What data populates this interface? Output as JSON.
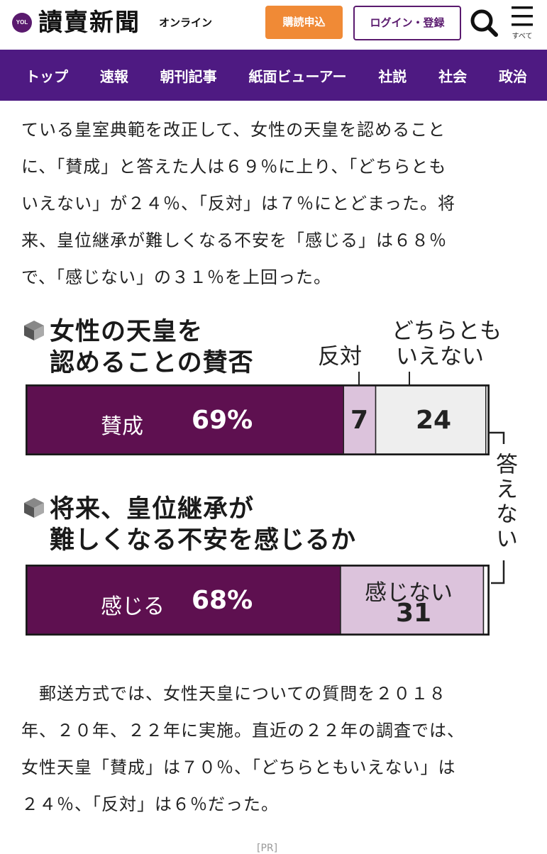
{
  "header": {
    "logo_badge": "YOL",
    "logo_text": "讀賣新聞",
    "logo_sub": "オンライン",
    "subscribe_label": "購読申込",
    "login_label": "ログイン・登録",
    "menu_label": "すべて"
  },
  "nav": {
    "items": [
      "トップ",
      "速報",
      "朝刊記事",
      "紙面ビューアー",
      "社説",
      "社会",
      "政治"
    ]
  },
  "article": {
    "para1": [
      "ている皇室典範を改正して、女性の天皇を認めること",
      "に、「賛成」と答えた人は６９％に上り、「どちらとも",
      "いえない」が２４％、「反対」は７％にとどまった。将",
      "来、皇位継承が難しくなる不安を「感じる」は６８％",
      "で、「感じない」の３１％を上回った。"
    ],
    "para2": [
      "　郵送方式では、女性天皇についての質問を２０１８",
      "年、２０年、２２年に実施。直近の２２年の調査では、",
      "女性天皇「賛成」は７０％、「どちらともいえない」は",
      "２４％、「反対」は６％だった。"
    ],
    "footer_fragment": "[PR]"
  },
  "colors": {
    "nav_bg": "#4e1a82",
    "subscribe_bg": "#f08a36",
    "bar_primary": "#5e1050",
    "bar_secondary": "#dcc3dc",
    "bar_neutral": "#eeeeee"
  },
  "chart_data": [
    {
      "type": "bar",
      "orientation": "horizontal-stacked",
      "title_lines": [
        "女性の天皇を",
        "認めることの賛否"
      ],
      "segments": [
        {
          "name": "賛成",
          "value": 69,
          "label": "69%",
          "color": "#5e1050"
        },
        {
          "name": "反対",
          "value": 7,
          "label": "7",
          "color": "#dcc3dc"
        },
        {
          "name": "どちらともいえない",
          "value": 24,
          "label": "24",
          "color": "#eeeeee"
        },
        {
          "name": "答えない",
          "value": 0.5,
          "label": "",
          "color": "#ffffff"
        }
      ],
      "callouts": {
        "hantai": "反対",
        "dochira": [
          "どちらとも",
          "いえない"
        ]
      }
    },
    {
      "type": "bar",
      "orientation": "horizontal-stacked",
      "title_lines": [
        "将来、皇位継承が",
        "難しくなる不安を感じるか"
      ],
      "segments": [
        {
          "name": "感じる",
          "value": 68,
          "label": "68%",
          "color": "#5e1050"
        },
        {
          "name": "感じない",
          "value": 31,
          "label": "31",
          "color": "#dcc3dc"
        },
        {
          "name": "答えない",
          "value": 1,
          "label": "",
          "color": "#ffffff"
        }
      ],
      "shared_callout": "答えない"
    }
  ]
}
